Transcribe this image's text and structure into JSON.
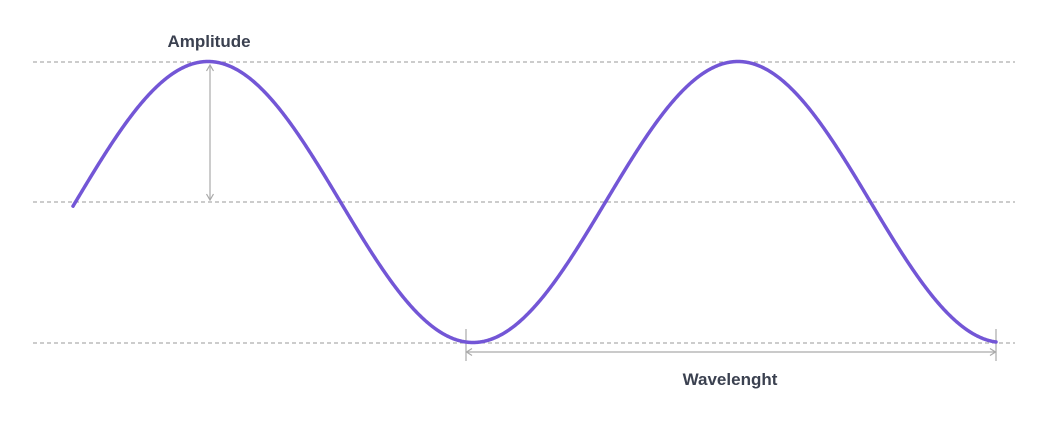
{
  "diagram": {
    "labels": {
      "amplitude": "Amplitude",
      "wavelength": "Wavelenght"
    },
    "colors": {
      "wave": "#7356d6",
      "guide_line": "#9a9a9a",
      "marker": "#aaaaaa",
      "label_text": "#3b4150",
      "background": "#ffffff"
    }
  }
}
